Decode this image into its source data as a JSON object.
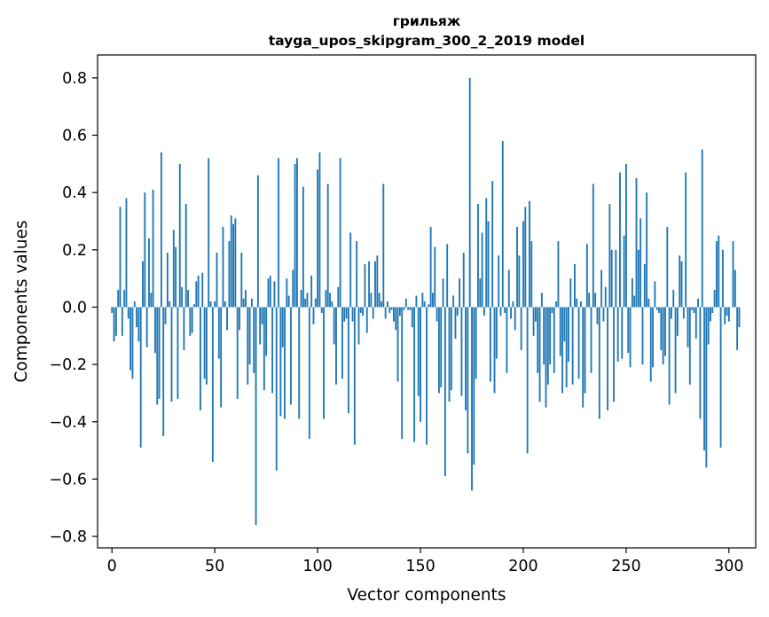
{
  "chart_data": {
    "type": "bar",
    "title_line1": "грильяж",
    "title_line2": "tayga_upos_skipgram_300_2_2019 model",
    "xlabel": "Vector components",
    "ylabel": "Components values",
    "xlim": [
      -7,
      313
    ],
    "ylim": [
      -0.84,
      0.88
    ],
    "xticks": [
      0,
      50,
      100,
      150,
      200,
      250,
      300
    ],
    "yticks": [
      -0.8,
      -0.6,
      -0.4,
      -0.2,
      0.0,
      0.2,
      0.4,
      0.6,
      0.8
    ],
    "ytick_labels": [
      "−0.8",
      "−0.6",
      "−0.4",
      "−0.2",
      "0.0",
      "0.2",
      "0.4",
      "0.6",
      "0.8"
    ],
    "xtick_labels": [
      "0",
      "50",
      "100",
      "150",
      "200",
      "250",
      "300"
    ],
    "bar_color": "#1f77b4",
    "values": [
      -0.02,
      -0.12,
      -0.1,
      0.06,
      0.35,
      -0.1,
      0.06,
      0.38,
      -0.04,
      -0.22,
      -0.25,
      0.02,
      -0.07,
      -0.12,
      -0.49,
      0.16,
      0.4,
      -0.14,
      0.24,
      0.05,
      0.41,
      -0.16,
      -0.34,
      -0.32,
      0.54,
      -0.45,
      -0.06,
      0.19,
      0.02,
      -0.33,
      0.27,
      0.21,
      -0.32,
      0.5,
      0.07,
      -0.15,
      0.36,
      0.06,
      -0.1,
      -0.09,
      0.01,
      0.09,
      0.11,
      -0.36,
      0.12,
      -0.25,
      -0.27,
      0.52,
      0.02,
      -0.54,
      0.02,
      0.19,
      -0.18,
      -0.35,
      0.28,
      0.02,
      -0.08,
      0.23,
      0.32,
      0.29,
      0.31,
      -0.32,
      -0.08,
      0.19,
      0.03,
      0.06,
      -0.27,
      -0.2,
      0.03,
      -0.23,
      -0.76,
      0.46,
      -0.13,
      -0.06,
      -0.29,
      -0.17,
      0.1,
      0.11,
      -0.3,
      0.09,
      -0.57,
      0.52,
      -0.38,
      -0.14,
      -0.39,
      0.1,
      0.04,
      -0.34,
      0.13,
      0.5,
      0.52,
      -0.39,
      0.06,
      0.42,
      0.03,
      0.05,
      -0.46,
      0.11,
      -0.06,
      0.03,
      0.48,
      0.54,
      -0.02,
      -0.39,
      0.06,
      0.43,
      0.05,
      0.02,
      -0.13,
      -0.27,
      0.07,
      0.52,
      -0.25,
      -0.05,
      -0.04,
      -0.37,
      0.26,
      -0.05,
      -0.48,
      0.23,
      -0.13,
      -0.02,
      -0.03,
      0.15,
      -0.09,
      0.16,
      0.05,
      -0.04,
      0.16,
      0.18,
      0.05,
      0.02,
      0.43,
      -0.04,
      0.02,
      -0.02,
      -0.01,
      -0.05,
      -0.08,
      -0.26,
      -0.03,
      -0.46,
      -0.01,
      0.03,
      -0.01,
      -0.01,
      -0.07,
      -0.47,
      0.04,
      -0.31,
      -0.4,
      0.05,
      0.02,
      -0.48,
      0.01,
      0.28,
      0.05,
      0.21,
      -0.05,
      -0.3,
      -0.28,
      0.1,
      -0.59,
      0.22,
      -0.33,
      -0.29,
      0.04,
      -0.11,
      -0.03,
      0.1,
      -0.31,
      0.19,
      -0.36,
      -0.51,
      0.8,
      -0.64,
      -0.55,
      -0.25,
      0.36,
      0.1,
      0.26,
      -0.03,
      0.38,
      0.3,
      -0.26,
      0.44,
      -0.3,
      -0.18,
      0.18,
      -0.03,
      0.58,
      -0.02,
      -0.23,
      0.13,
      -0.04,
      0.02,
      -0.08,
      0.28,
      0.18,
      -0.15,
      0.3,
      0.35,
      -0.51,
      0.37,
      0.23,
      -0.1,
      -0.05,
      -0.23,
      -0.33,
      0.05,
      -0.2,
      -0.35,
      -0.27,
      -0.2,
      -0.02,
      -0.23,
      0.02,
      0.23,
      -0.17,
      -0.3,
      -0.12,
      -0.28,
      -0.19,
      0.1,
      -0.27,
      0.15,
      0.03,
      -0.25,
      0.02,
      -0.35,
      -0.3,
      0.22,
      0.05,
      -0.23,
      0.43,
      0.05,
      -0.06,
      -0.39,
      0.13,
      -0.05,
      0.07,
      -0.36,
      0.36,
      0.2,
      -0.33,
      0.2,
      -0.19,
      0.47,
      -0.18,
      0.25,
      0.5,
      -0.16,
      -0.21,
      0.1,
      0.04,
      0.45,
      0.2,
      0.31,
      -0.2,
      0.15,
      0.4,
      0.03,
      -0.26,
      -0.21,
      0.09,
      -0.01,
      -0.02,
      -0.15,
      -0.2,
      -0.17,
      0.28,
      -0.34,
      -0.04,
      0.06,
      -0.3,
      -0.1,
      0.18,
      0.16,
      -0.04,
      0.47,
      -0.14,
      -0.27,
      -0.01,
      -0.02,
      -0.11,
      0.03,
      -0.39,
      0.55,
      -0.5,
      -0.56,
      -0.13,
      -0.05,
      -0.02,
      0.06,
      0.23,
      0.25,
      -0.49,
      0.2,
      -0.06,
      -0.03,
      -0.05,
      0.0,
      0.23,
      0.13,
      -0.15,
      -0.07
    ]
  }
}
